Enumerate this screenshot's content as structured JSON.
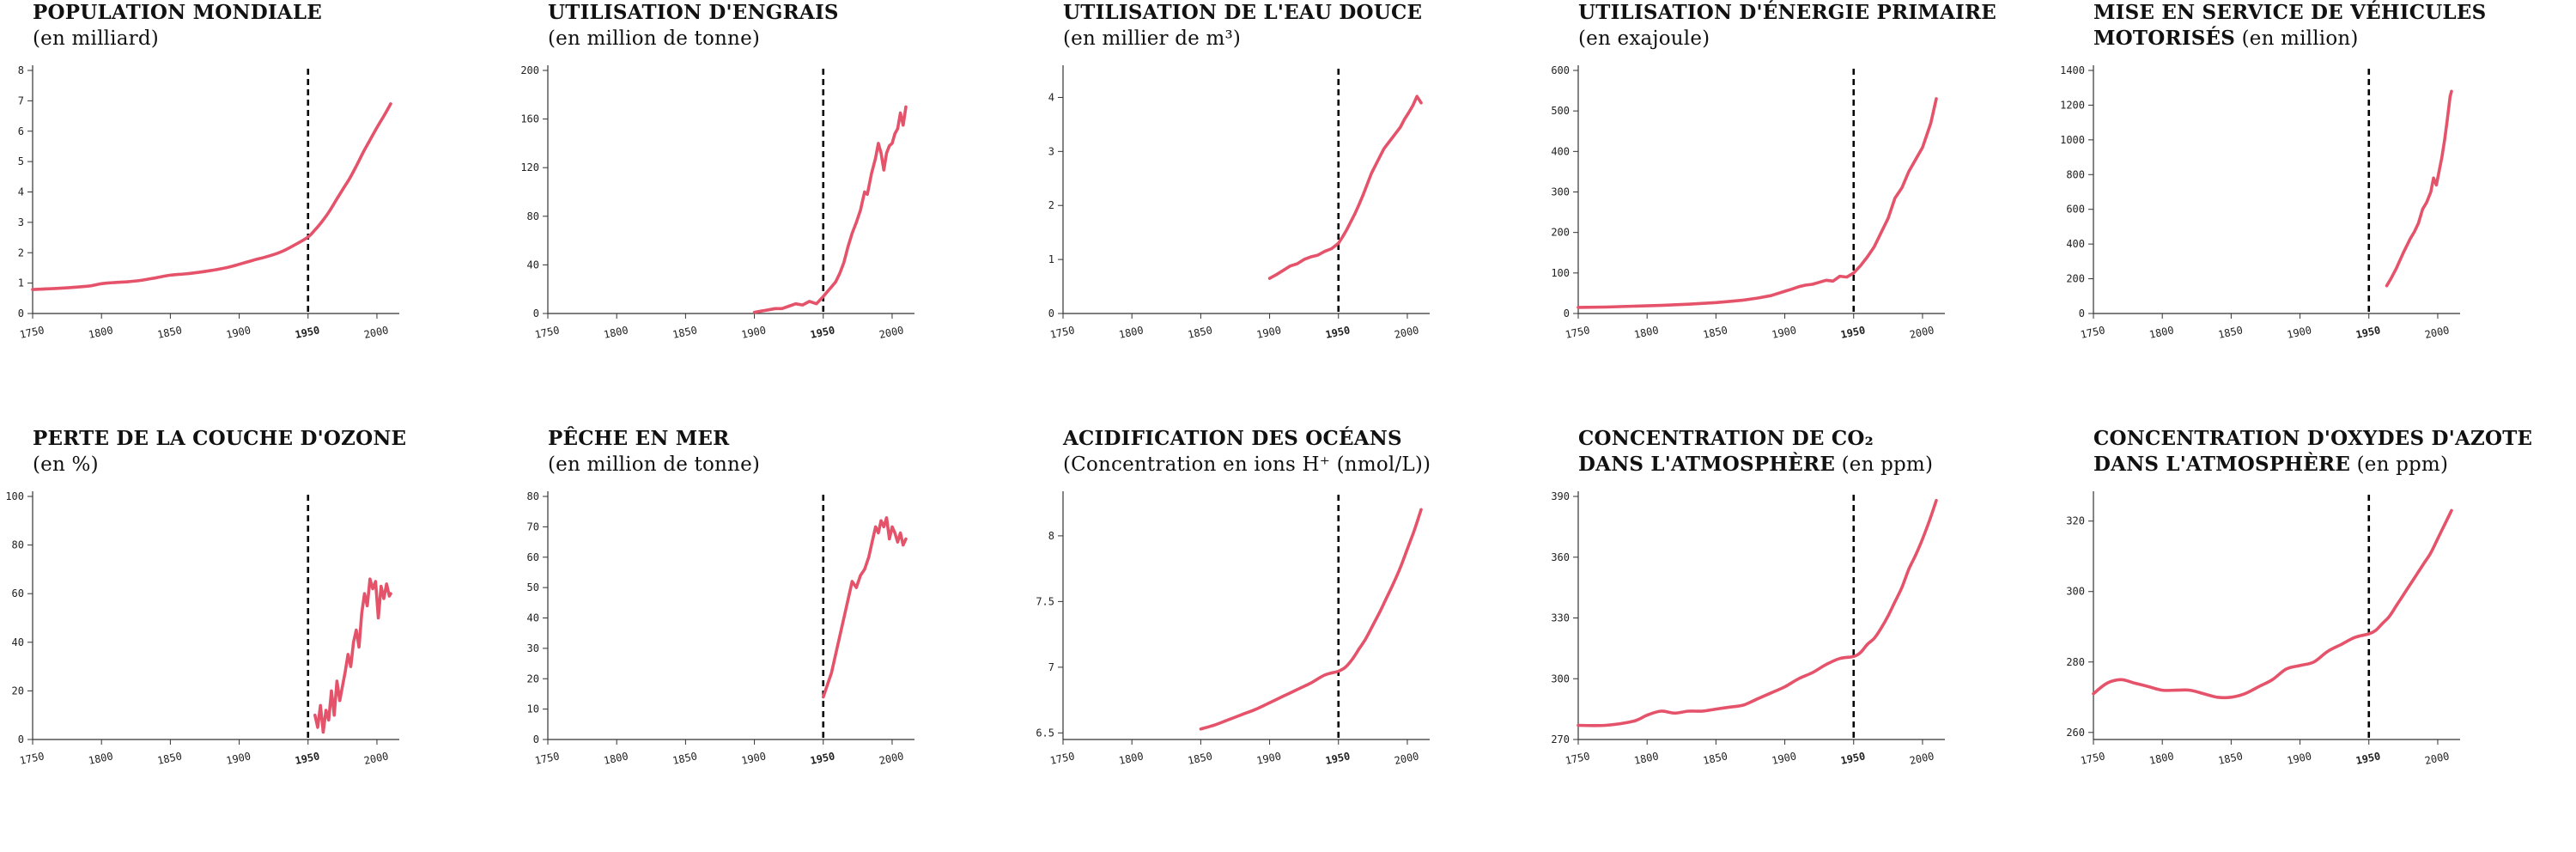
{
  "colors": {
    "series": "#e5536b",
    "axis": "#333333",
    "marker": "#000000"
  },
  "marker_x": 1950,
  "marker_label": "1950",
  "chart_data": [
    {
      "type": "line",
      "title": "POPULATION MONDIALE",
      "subtitle": "(en milliard)",
      "xlim": [
        1750,
        2010
      ],
      "ylim": [
        0,
        8
      ],
      "x_ticks": [
        1750,
        1800,
        1850,
        1900,
        1950,
        2000
      ],
      "y_ticks": [
        0,
        1,
        2,
        3,
        4,
        5,
        6,
        7,
        8
      ],
      "x": [
        1750,
        1770,
        1790,
        1800,
        1810,
        1820,
        1830,
        1840,
        1850,
        1860,
        1870,
        1880,
        1890,
        1900,
        1910,
        1920,
        1930,
        1940,
        1950,
        1955,
        1960,
        1965,
        1970,
        1975,
        1980,
        1985,
        1990,
        1995,
        2000,
        2005,
        2010
      ],
      "y": [
        0.79,
        0.83,
        0.9,
        0.98,
        1.02,
        1.05,
        1.1,
        1.18,
        1.26,
        1.3,
        1.35,
        1.42,
        1.5,
        1.62,
        1.75,
        1.87,
        2.02,
        2.25,
        2.52,
        2.75,
        3.02,
        3.33,
        3.7,
        4.07,
        4.43,
        4.85,
        5.3,
        5.71,
        6.12,
        6.5,
        6.9
      ],
      "style": "smooth"
    },
    {
      "type": "line",
      "title": "UTILISATION D'ENGRAIS",
      "subtitle": "(en million de tonne)",
      "xlim": [
        1750,
        2010
      ],
      "ylim": [
        0,
        200
      ],
      "x_ticks": [
        1750,
        1800,
        1850,
        1900,
        1950,
        2000
      ],
      "y_ticks": [
        0,
        40,
        80,
        120,
        160,
        200
      ],
      "x": [
        1900,
        1905,
        1910,
        1915,
        1920,
        1925,
        1930,
        1935,
        1940,
        1945,
        1950,
        1953,
        1956,
        1959,
        1962,
        1965,
        1968,
        1971,
        1974,
        1977,
        1980,
        1982,
        1985,
        1988,
        1990,
        1992,
        1994,
        1996,
        1998,
        2000,
        2002,
        2004,
        2006,
        2008,
        2010
      ],
      "y": [
        1,
        2,
        3,
        4,
        4,
        6,
        8,
        7,
        10,
        8,
        14,
        18,
        22,
        26,
        33,
        42,
        55,
        66,
        75,
        85,
        100,
        98,
        115,
        128,
        140,
        132,
        118,
        132,
        138,
        140,
        148,
        152,
        165,
        155,
        170
      ],
      "style": "jagged"
    },
    {
      "type": "line",
      "title": "UTILISATION DE L'EAU DOUCE",
      "subtitle": "(en millier de m³)",
      "xlim": [
        1750,
        2010
      ],
      "ylim": [
        0,
        4.5
      ],
      "x_ticks": [
        1750,
        1800,
        1850,
        1900,
        1950,
        2000
      ],
      "y_ticks": [
        0,
        1,
        2,
        3,
        4
      ],
      "x": [
        1900,
        1905,
        1910,
        1915,
        1920,
        1925,
        1930,
        1935,
        1940,
        1945,
        1950,
        1953,
        1956,
        1959,
        1962,
        1965,
        1968,
        1971,
        1974,
        1977,
        1980,
        1983,
        1986,
        1989,
        1992,
        1995,
        1998,
        2001,
        2004,
        2007,
        2010
      ],
      "y": [
        0.65,
        0.72,
        0.8,
        0.88,
        0.92,
        1.0,
        1.05,
        1.08,
        1.15,
        1.2,
        1.3,
        1.42,
        1.55,
        1.7,
        1.85,
        2.02,
        2.2,
        2.4,
        2.6,
        2.75,
        2.9,
        3.05,
        3.15,
        3.25,
        3.35,
        3.45,
        3.6,
        3.72,
        3.85,
        4.02,
        3.9
      ],
      "style": "jagged"
    },
    {
      "type": "line",
      "title": "UTILISATION D'ÉNERGIE PRIMAIRE",
      "subtitle": "(en exajoule)",
      "xlim": [
        1750,
        2010
      ],
      "ylim": [
        0,
        600
      ],
      "x_ticks": [
        1750,
        1800,
        1850,
        1900,
        1950,
        2000
      ],
      "y_ticks": [
        0,
        100,
        200,
        300,
        400,
        500,
        600
      ],
      "x": [
        1750,
        1770,
        1790,
        1810,
        1830,
        1850,
        1860,
        1870,
        1880,
        1890,
        1900,
        1905,
        1910,
        1915,
        1920,
        1925,
        1930,
        1935,
        1940,
        1945,
        1950,
        1955,
        1960,
        1965,
        1970,
        1975,
        1980,
        1985,
        1990,
        1995,
        2000,
        2003,
        2006,
        2010
      ],
      "y": [
        15,
        16,
        18,
        20,
        23,
        27,
        30,
        33,
        38,
        44,
        55,
        60,
        66,
        70,
        72,
        77,
        82,
        80,
        92,
        90,
        100,
        118,
        140,
        165,
        200,
        235,
        285,
        310,
        350,
        380,
        410,
        440,
        470,
        530
      ],
      "style": "jagged"
    },
    {
      "type": "line",
      "title": "MISE EN SERVICE DE VÉHICULES MOTORISÉS",
      "subtitle": "(en million)",
      "xlim": [
        1750,
        2010
      ],
      "ylim": [
        0,
        1400
      ],
      "x_ticks": [
        1750,
        1800,
        1850,
        1900,
        1950,
        2000
      ],
      "y_ticks": [
        0,
        200,
        400,
        600,
        800,
        1000,
        1200,
        1400
      ],
      "x": [
        1963,
        1966,
        1970,
        1975,
        1980,
        1983,
        1986,
        1989,
        1992,
        1995,
        1997,
        1999,
        2001,
        2003,
        2005,
        2007,
        2009,
        2010
      ],
      "y": [
        160,
        200,
        260,
        350,
        430,
        470,
        520,
        600,
        640,
        700,
        780,
        740,
        820,
        900,
        1000,
        1120,
        1250,
        1280
      ],
      "style": "jagged"
    },
    {
      "type": "line",
      "title": "PERTE DE LA COUCHE D'OZONE",
      "subtitle": "(en %)",
      "xlim": [
        1750,
        2010
      ],
      "ylim": [
        0,
        100
      ],
      "x_ticks": [
        1750,
        1800,
        1850,
        1900,
        1950,
        2000
      ],
      "y_ticks": [
        0,
        20,
        40,
        60,
        80,
        100
      ],
      "x": [
        1955,
        1957,
        1959,
        1961,
        1963,
        1965,
        1967,
        1969,
        1971,
        1973,
        1975,
        1977,
        1979,
        1981,
        1983,
        1985,
        1987,
        1989,
        1991,
        1993,
        1995,
        1997,
        1999,
        2001,
        2003,
        2005,
        2007,
        2009,
        2010
      ],
      "y": [
        10,
        5,
        14,
        3,
        12,
        8,
        20,
        10,
        24,
        16,
        22,
        28,
        35,
        30,
        40,
        45,
        38,
        52,
        60,
        55,
        66,
        62,
        65,
        50,
        63,
        58,
        64,
        59,
        60
      ],
      "style": "jagged"
    },
    {
      "type": "line",
      "title": "PÊCHE EN MER",
      "subtitle": "(en million de tonne)",
      "xlim": [
        1750,
        2010
      ],
      "ylim": [
        0,
        80
      ],
      "x_ticks": [
        1750,
        1800,
        1850,
        1900,
        1950,
        2000
      ],
      "y_ticks": [
        0,
        10,
        20,
        30,
        40,
        50,
        60,
        70,
        80
      ],
      "x": [
        1950,
        1953,
        1956,
        1959,
        1962,
        1965,
        1968,
        1971,
        1974,
        1977,
        1980,
        1983,
        1986,
        1988,
        1990,
        1992,
        1994,
        1996,
        1998,
        2000,
        2002,
        2004,
        2006,
        2008,
        2010
      ],
      "y": [
        14,
        18,
        22,
        28,
        34,
        40,
        46,
        52,
        50,
        54,
        56,
        60,
        66,
        70,
        68,
        72,
        70,
        73,
        66,
        70,
        68,
        65,
        68,
        64,
        66
      ],
      "style": "jagged"
    },
    {
      "type": "line",
      "title": "ACIDIFICATION DES OCÉANS",
      "subtitle": "(Concentration en ions H⁺ (nmol/L))",
      "xlim": [
        1750,
        2010
      ],
      "ylim": [
        6.45,
        8.3
      ],
      "x_ticks": [
        1750,
        1800,
        1850,
        1900,
        1950,
        2000
      ],
      "y_ticks": [
        6.5,
        7.0,
        7.5,
        8.0
      ],
      "x": [
        1850,
        1860,
        1870,
        1880,
        1890,
        1900,
        1910,
        1920,
        1930,
        1940,
        1950,
        1955,
        1960,
        1965,
        1970,
        1975,
        1980,
        1985,
        1990,
        1995,
        2000,
        2005,
        2010
      ],
      "y": [
        6.53,
        6.56,
        6.6,
        6.64,
        6.68,
        6.73,
        6.78,
        6.83,
        6.88,
        6.94,
        6.97,
        7.0,
        7.06,
        7.14,
        7.22,
        7.32,
        7.42,
        7.53,
        7.64,
        7.76,
        7.9,
        8.04,
        8.2
      ],
      "style": "smooth"
    },
    {
      "type": "line",
      "title": "CONCENTRATION DE CO₂ DANS L'ATMOSPHÈRE",
      "subtitle": "(en ppm)",
      "xlim": [
        1750,
        2010
      ],
      "ylim": [
        270,
        390
      ],
      "x_ticks": [
        1750,
        1800,
        1850,
        1900,
        1950,
        2000
      ],
      "y_ticks": [
        270,
        300,
        330,
        360,
        390
      ],
      "x": [
        1750,
        1770,
        1790,
        1800,
        1810,
        1820,
        1830,
        1840,
        1850,
        1860,
        1870,
        1880,
        1890,
        1900,
        1910,
        1920,
        1930,
        1940,
        1950,
        1955,
        1960,
        1965,
        1970,
        1975,
        1980,
        1985,
        1990,
        1995,
        2000,
        2005,
        2010
      ],
      "y": [
        277,
        277,
        279,
        282,
        284,
        283,
        284,
        284,
        285,
        286,
        287,
        290,
        293,
        296,
        300,
        303,
        307,
        310,
        311,
        313,
        317,
        320,
        325,
        331,
        338,
        345,
        354,
        361,
        369,
        378,
        388
      ],
      "style": "smooth"
    },
    {
      "type": "line",
      "title": "CONCENTRATION D'OXYDES D'AZOTE DANS L'ATMOSPHÈRE",
      "subtitle": "(en ppm)",
      "xlim": [
        1750,
        2010
      ],
      "ylim": [
        258,
        327
      ],
      "x_ticks": [
        1750,
        1800,
        1850,
        1900,
        1950,
        2000
      ],
      "y_ticks": [
        260,
        280,
        300,
        320
      ],
      "x": [
        1750,
        1760,
        1770,
        1780,
        1790,
        1800,
        1810,
        1820,
        1830,
        1840,
        1850,
        1860,
        1870,
        1880,
        1890,
        1900,
        1910,
        1920,
        1930,
        1940,
        1950,
        1955,
        1960,
        1965,
        1970,
        1975,
        1980,
        1985,
        1990,
        1995,
        2000,
        2005,
        2010
      ],
      "y": [
        271,
        274,
        275,
        274,
        273,
        272,
        272,
        272,
        271,
        270,
        270,
        271,
        273,
        275,
        278,
        279,
        280,
        283,
        285,
        287,
        288,
        289,
        291,
        293,
        296,
        299,
        302,
        305,
        308,
        311,
        315,
        319,
        323
      ],
      "style": "smooth"
    }
  ]
}
